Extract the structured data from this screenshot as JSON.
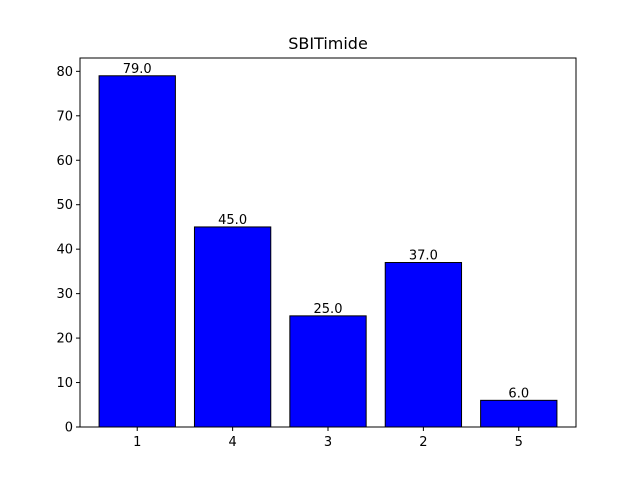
{
  "chart_data": {
    "type": "bar",
    "title": "SBITimide",
    "xlabel": "",
    "ylabel": "",
    "categories": [
      "1",
      "4",
      "3",
      "2",
      "5"
    ],
    "values": [
      79.0,
      45.0,
      25.0,
      37.0,
      6.0
    ],
    "value_labels": [
      "79.0",
      "45.0",
      "25.0",
      "37.0",
      "6.0"
    ],
    "ylim": [
      0,
      83
    ],
    "yticks": [
      0,
      10,
      20,
      30,
      40,
      50,
      60,
      70,
      80
    ],
    "ytick_labels": [
      "0",
      "10",
      "20",
      "30",
      "40",
      "50",
      "60",
      "70",
      "80"
    ],
    "grid": false,
    "legend": "none",
    "bar_color": "#0000ff",
    "edge_color": "#000000"
  }
}
